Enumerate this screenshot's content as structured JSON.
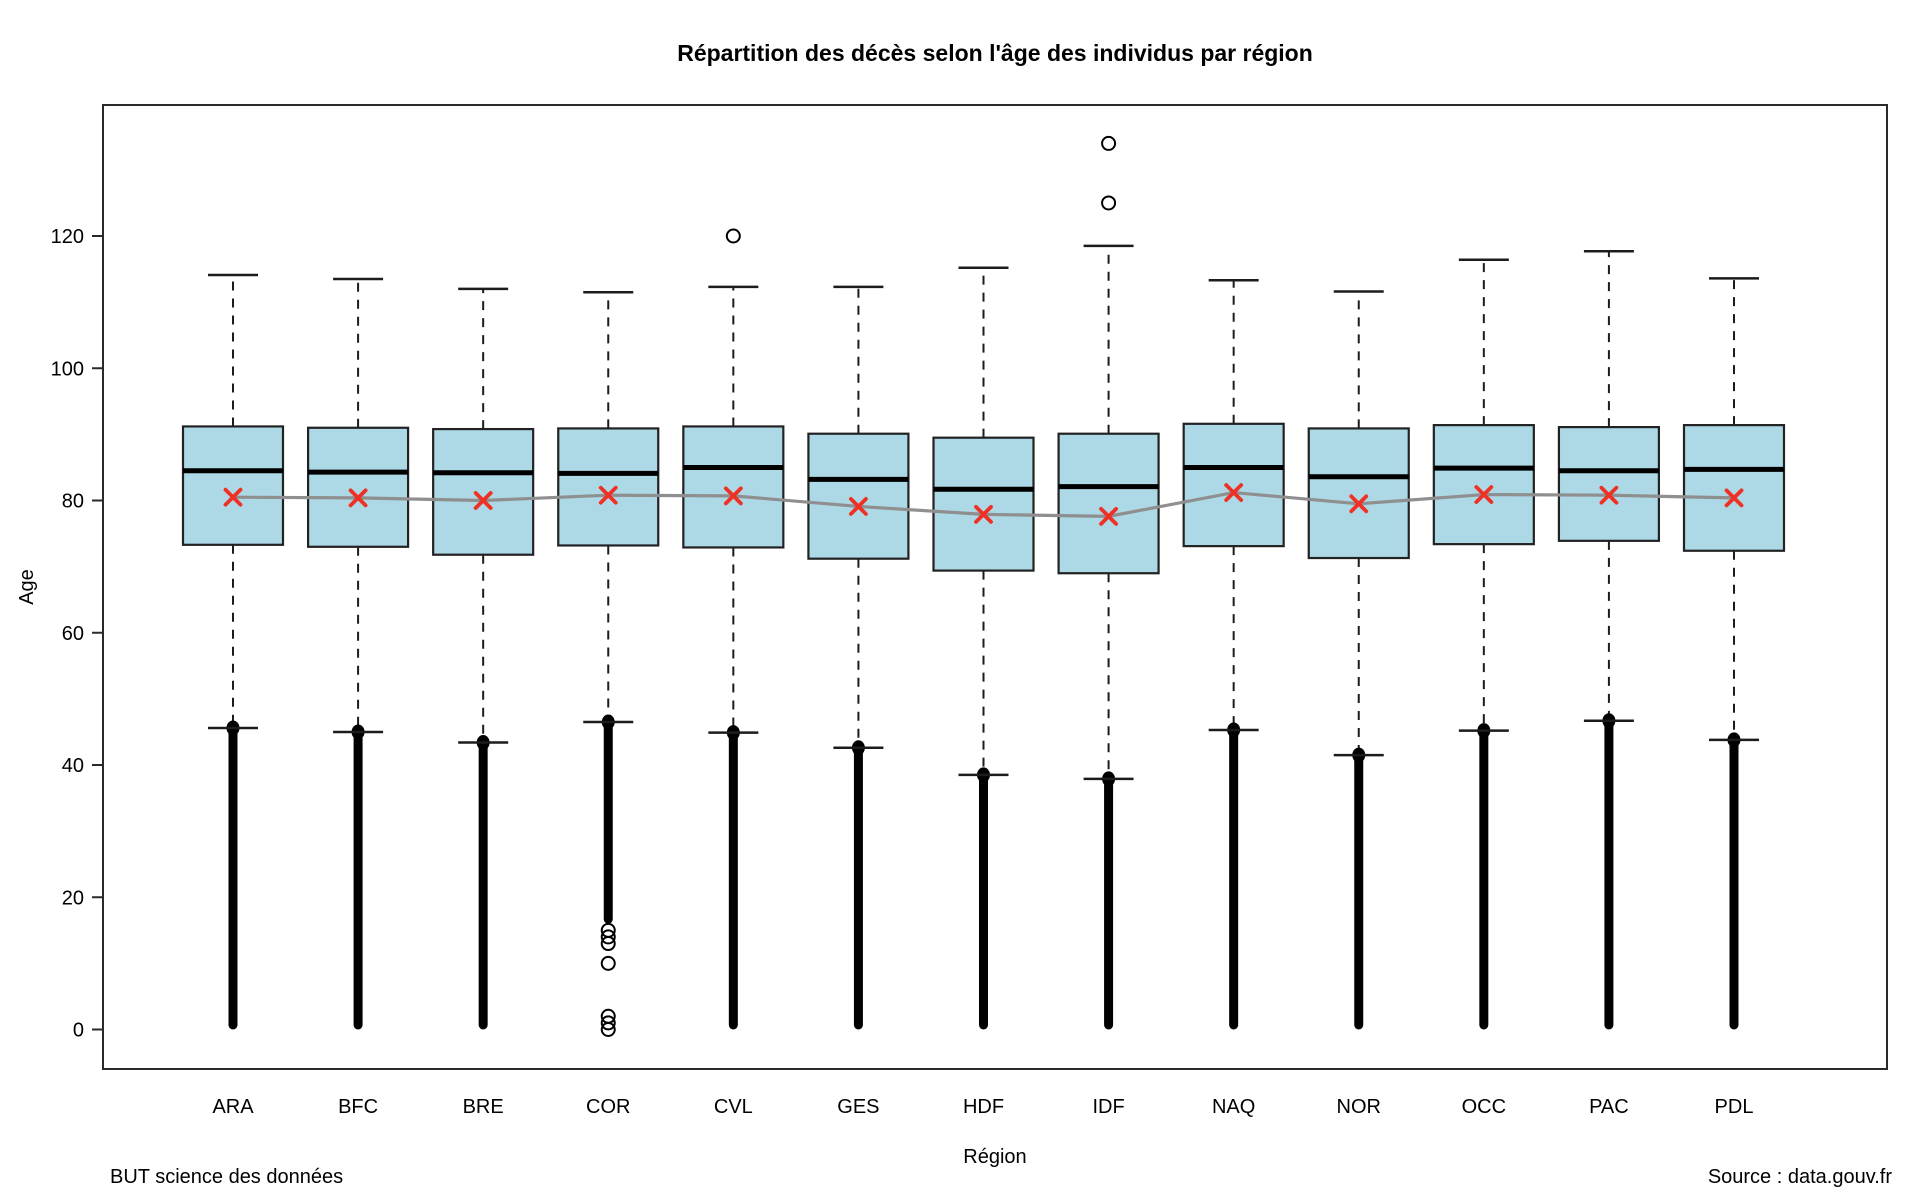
{
  "footer": {
    "left": "BUT science des données",
    "right": "Source : data.gouv.fr"
  },
  "chart_data": {
    "type": "boxplot",
    "title": "Répartition des décès selon l'âge des individus par région",
    "xlabel": "Région",
    "ylabel": "Age",
    "ylim": [
      0,
      135
    ],
    "yticks": [
      0,
      20,
      40,
      60,
      80,
      100,
      120
    ],
    "grid": false,
    "legend": "none",
    "categories": [
      "ARA",
      "BFC",
      "BRE",
      "COR",
      "CVL",
      "GES",
      "HDF",
      "IDF",
      "NAQ",
      "NOR",
      "OCC",
      "PAC",
      "PDL"
    ],
    "series": [
      {
        "code": "ARA",
        "whisker_low": 45.6,
        "q1": 73.3,
        "median": 84.5,
        "q3": 91.2,
        "whisker_high": 114.1,
        "mean": 80.5,
        "dense_low": [
          0,
          45.6
        ],
        "circles_low": [],
        "outliers_high": []
      },
      {
        "code": "BFC",
        "whisker_low": 45.0,
        "q1": 73.0,
        "median": 84.3,
        "q3": 91.0,
        "whisker_high": 113.5,
        "mean": 80.4,
        "dense_low": [
          0,
          45.0
        ],
        "circles_low": [],
        "outliers_high": []
      },
      {
        "code": "BRE",
        "whisker_low": 43.4,
        "q1": 71.8,
        "median": 84.2,
        "q3": 90.8,
        "whisker_high": 112.0,
        "mean": 80.0,
        "dense_low": [
          0,
          43.4
        ],
        "circles_low": [],
        "outliers_high": []
      },
      {
        "code": "COR",
        "whisker_low": 46.5,
        "q1": 73.2,
        "median": 84.1,
        "q3": 90.9,
        "whisker_high": 111.5,
        "mean": 80.8,
        "dense_low": [
          16,
          46.5
        ],
        "circles_low": [
          15,
          14,
          13,
          10,
          2,
          1,
          0
        ],
        "outliers_high": []
      },
      {
        "code": "CVL",
        "whisker_low": 44.9,
        "q1": 72.9,
        "median": 85.0,
        "q3": 91.2,
        "whisker_high": 112.3,
        "mean": 80.7,
        "dense_low": [
          0,
          44.9
        ],
        "circles_low": [],
        "outliers_high": [
          120
        ]
      },
      {
        "code": "GES",
        "whisker_low": 42.6,
        "q1": 71.2,
        "median": 83.2,
        "q3": 90.1,
        "whisker_high": 112.3,
        "mean": 79.1,
        "dense_low": [
          0,
          42.6
        ],
        "circles_low": [],
        "outliers_high": []
      },
      {
        "code": "HDF",
        "whisker_low": 38.5,
        "q1": 69.4,
        "median": 81.7,
        "q3": 89.5,
        "whisker_high": 115.2,
        "mean": 77.9,
        "dense_low": [
          0,
          38.5
        ],
        "circles_low": [],
        "outliers_high": []
      },
      {
        "code": "IDF",
        "whisker_low": 37.9,
        "q1": 69.0,
        "median": 82.1,
        "q3": 90.1,
        "whisker_high": 118.5,
        "mean": 77.6,
        "dense_low": [
          0,
          37.9
        ],
        "circles_low": [],
        "outliers_high": [
          125,
          134
        ]
      },
      {
        "code": "NAQ",
        "whisker_low": 45.3,
        "q1": 73.1,
        "median": 85.0,
        "q3": 91.6,
        "whisker_high": 113.3,
        "mean": 81.2,
        "dense_low": [
          0,
          45.3
        ],
        "circles_low": [],
        "outliers_high": []
      },
      {
        "code": "NOR",
        "whisker_low": 41.5,
        "q1": 71.3,
        "median": 83.6,
        "q3": 90.9,
        "whisker_high": 111.6,
        "mean": 79.5,
        "dense_low": [
          0,
          41.5
        ],
        "circles_low": [],
        "outliers_high": []
      },
      {
        "code": "OCC",
        "whisker_low": 45.2,
        "q1": 73.4,
        "median": 84.9,
        "q3": 91.4,
        "whisker_high": 116.4,
        "mean": 80.9,
        "dense_low": [
          0,
          45.2
        ],
        "circles_low": [],
        "outliers_high": []
      },
      {
        "code": "PAC",
        "whisker_low": 46.7,
        "q1": 73.9,
        "median": 84.5,
        "q3": 91.1,
        "whisker_high": 117.7,
        "mean": 80.8,
        "dense_low": [
          0,
          46.7
        ],
        "circles_low": [],
        "outliers_high": []
      },
      {
        "code": "PDL",
        "whisker_low": 43.8,
        "q1": 72.4,
        "median": 84.7,
        "q3": 91.4,
        "whisker_high": 113.6,
        "mean": 80.4,
        "dense_low": [
          0,
          43.8
        ],
        "circles_low": [],
        "outliers_high": []
      }
    ],
    "mean_line": true,
    "colors": {
      "box_fill": "#ADD8E6",
      "box_border": "#222222",
      "median": "#000000",
      "whisker": "#1c1c1c",
      "outlier": "#000000",
      "mean_marker": "#ee3124",
      "mean_line": "#8f8f8f",
      "text": "#000000"
    }
  }
}
